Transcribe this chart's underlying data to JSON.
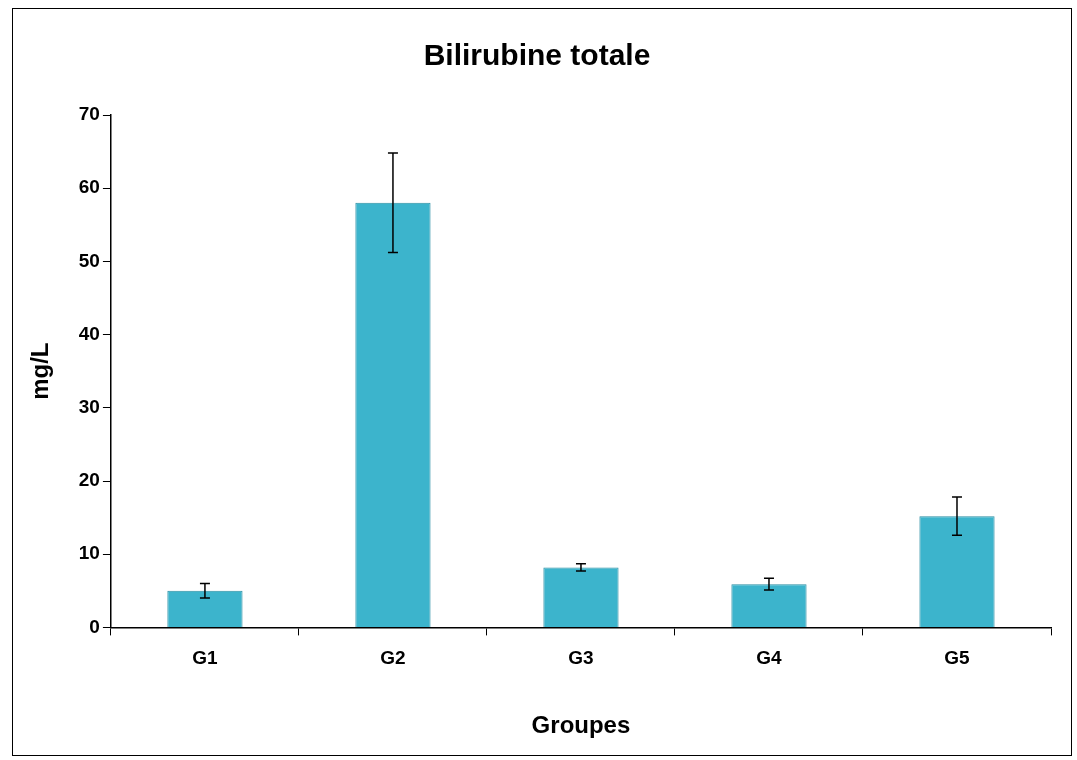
{
  "chart_data": {
    "type": "bar",
    "title": "Bilirubine totale",
    "xlabel": "Groupes",
    "ylabel": "mg/L",
    "categories": [
      "G1",
      "G2",
      "G3",
      "G4",
      "G5"
    ],
    "values": [
      5,
      58,
      8.2,
      5.9,
      15.2
    ],
    "errors": [
      1,
      6.8,
      0.5,
      0.8,
      2.6
    ],
    "color": "#3cb4cc",
    "ylim": [
      0,
      70
    ],
    "yticks": [
      0,
      10,
      20,
      30,
      40,
      50,
      60,
      70
    ],
    "grid": false,
    "legend": false
  }
}
